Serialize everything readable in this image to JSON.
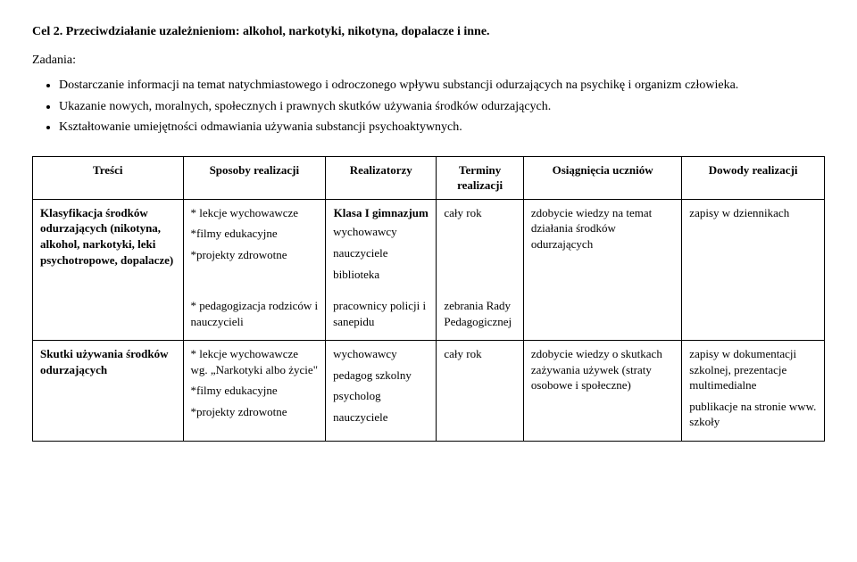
{
  "heading": "Cel 2. Przeciwdziałanie uzależnieniom: alkohol, narkotyki, nikotyna, dopalacze i inne.",
  "subheading": "Zadania:",
  "tasks": [
    "Dostarczanie informacji na temat natychmiastowego i odroczonego wpływu substancji odurzających na psychikę i organizm człowieka.",
    "Ukazanie nowych, moralnych, społecznych i prawnych skutków używania środków odurzających.",
    "Kształtowanie umiejętności odmawiania używania substancji psychoaktywnych."
  ],
  "columns": {
    "tresci": "Treści",
    "sposoby": "Sposoby realizacji",
    "realizatorzy": "Realizatorzy",
    "terminy": "Terminy realizacji",
    "osiag": "Osiągnięcia uczniów",
    "dowody": "Dowody realizacji"
  },
  "section_label": "Klasa I gimnazjum",
  "rows": [
    {
      "tresci": "Klasyfikacja środków odurzających (nikotyna, alkohol, narkotyki, leki psychotropowe, dopalacze)",
      "sposoby": "* lekcje  wychowawcze\n\n*filmy edukacyjne\n\n*projekty zdrowotne",
      "realizatorzy": "wychowawcy\n\nnauczyciele\n\nbiblioteka",
      "terminy": "cały rok",
      "osiag": "zdobycie wiedzy na temat działania środków odurzających",
      "dowody": "zapisy w dziennikach"
    },
    {
      "tresci": "",
      "sposoby": "* pedagogizacja rodziców i  nauczycieli",
      "realizatorzy": "pracownicy policji i sanepidu",
      "terminy": "zebrania Rady Pedagogicznej",
      "osiag": "",
      "dowody": ""
    },
    {
      "tresci": "Skutki używania środków odurzających",
      "sposoby": "* lekcje  wychowawcze wg. „Narkotyki albo życie\"\n\n*filmy edukacyjne\n\n*projekty zdrowotne",
      "realizatorzy": "wychowawcy\n\npedagog szkolny\n\npsycholog\n\nnauczyciele",
      "terminy": "cały rok",
      "osiag": "zdobycie wiedzy o skutkach zażywania używek (straty osobowe i społeczne)",
      "dowody": "zapisy w dokumentacji szkolnej, prezentacje multimedialne\n\npublikacje na stronie www. szkoły"
    }
  ]
}
